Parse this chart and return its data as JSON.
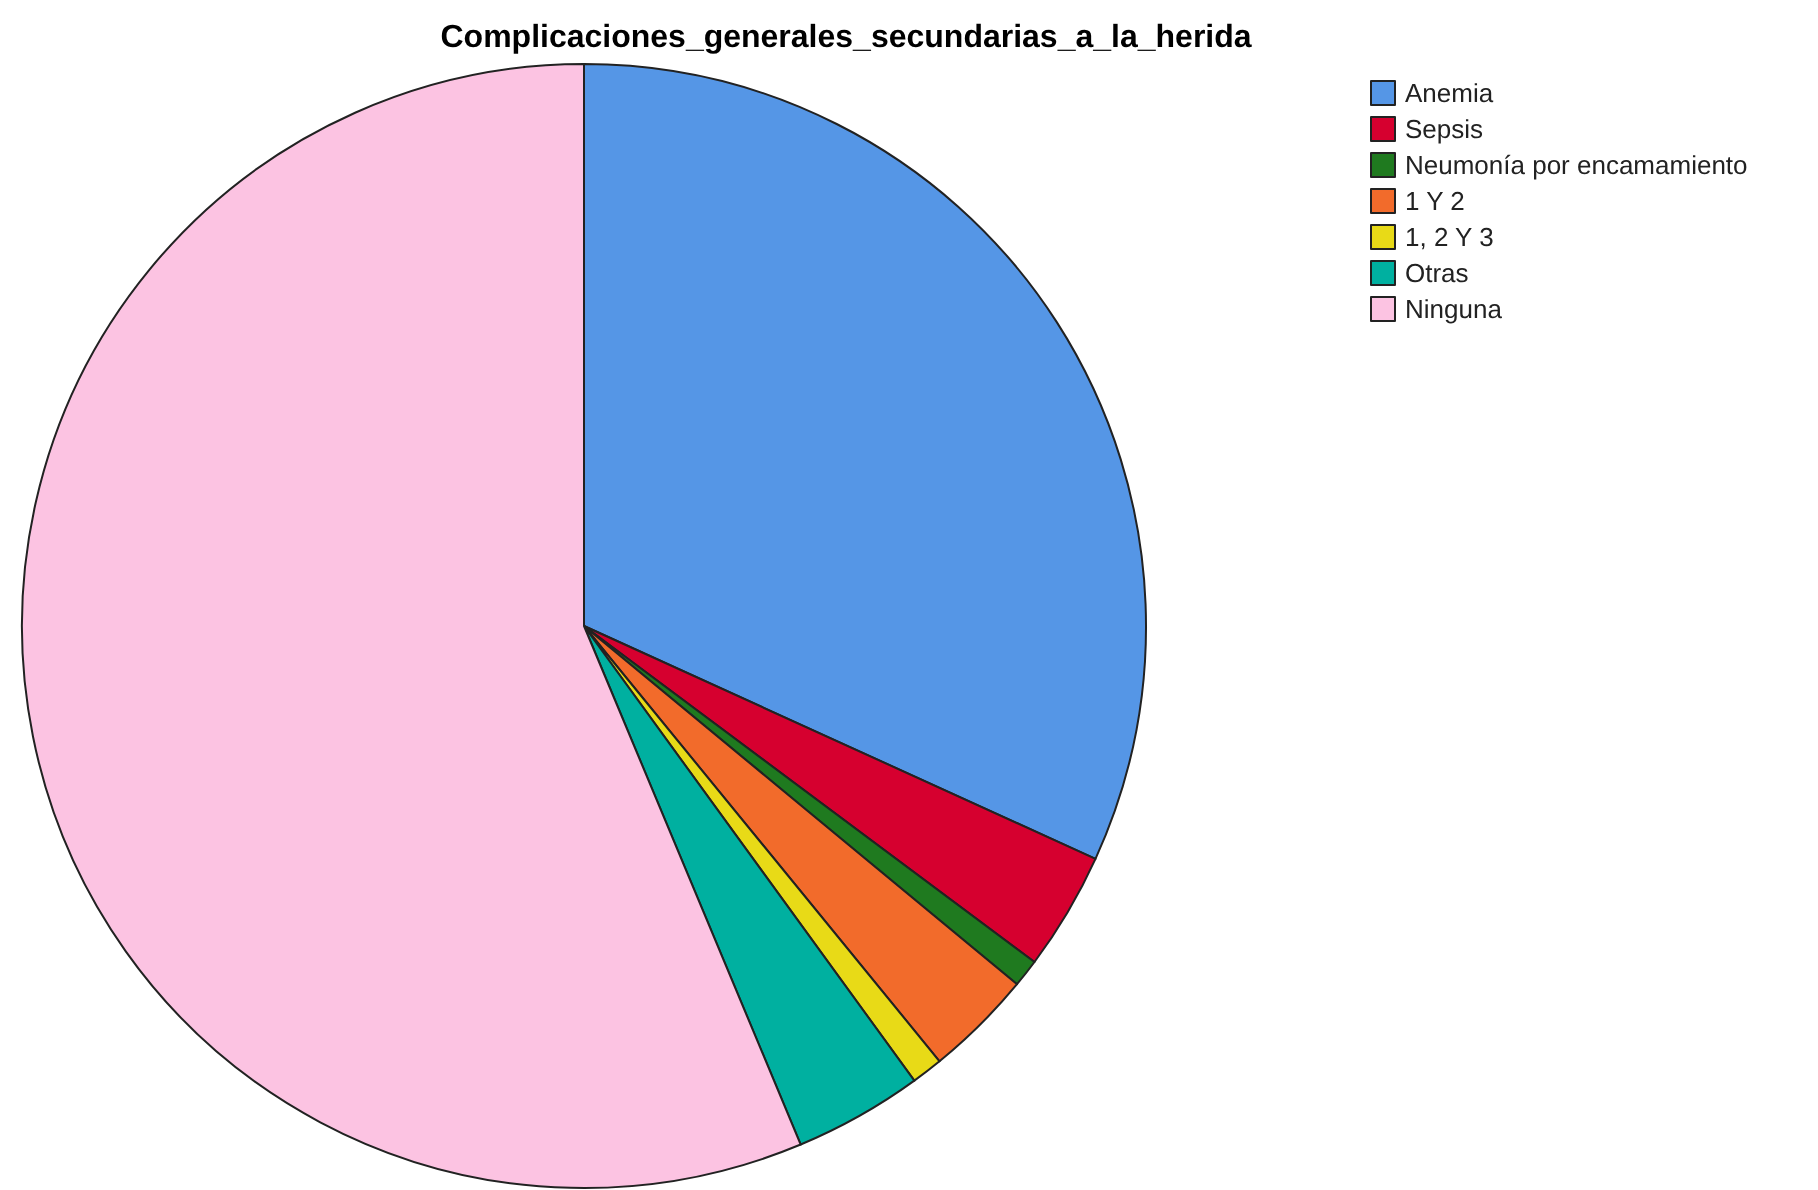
{
  "chart_data": {
    "type": "pie",
    "title": "Complicaciones_generales_secundarias_a_la_herida",
    "categories": [
      "Anemia",
      "Sepsis",
      "Neumonía por encamamiento",
      "1 Y 2",
      "1, 2 Y 3",
      "Otras",
      "Ninguna"
    ],
    "values": [
      31.8,
      3.4,
      0.8,
      3.1,
      0.9,
      3.7,
      56.3
    ],
    "colors": [
      "#5596e6",
      "#d6002f",
      "#1f7a1f",
      "#f26b2b",
      "#e8da17",
      "#00b0a0",
      "#fcc3e2"
    ],
    "legend": "top right"
  }
}
